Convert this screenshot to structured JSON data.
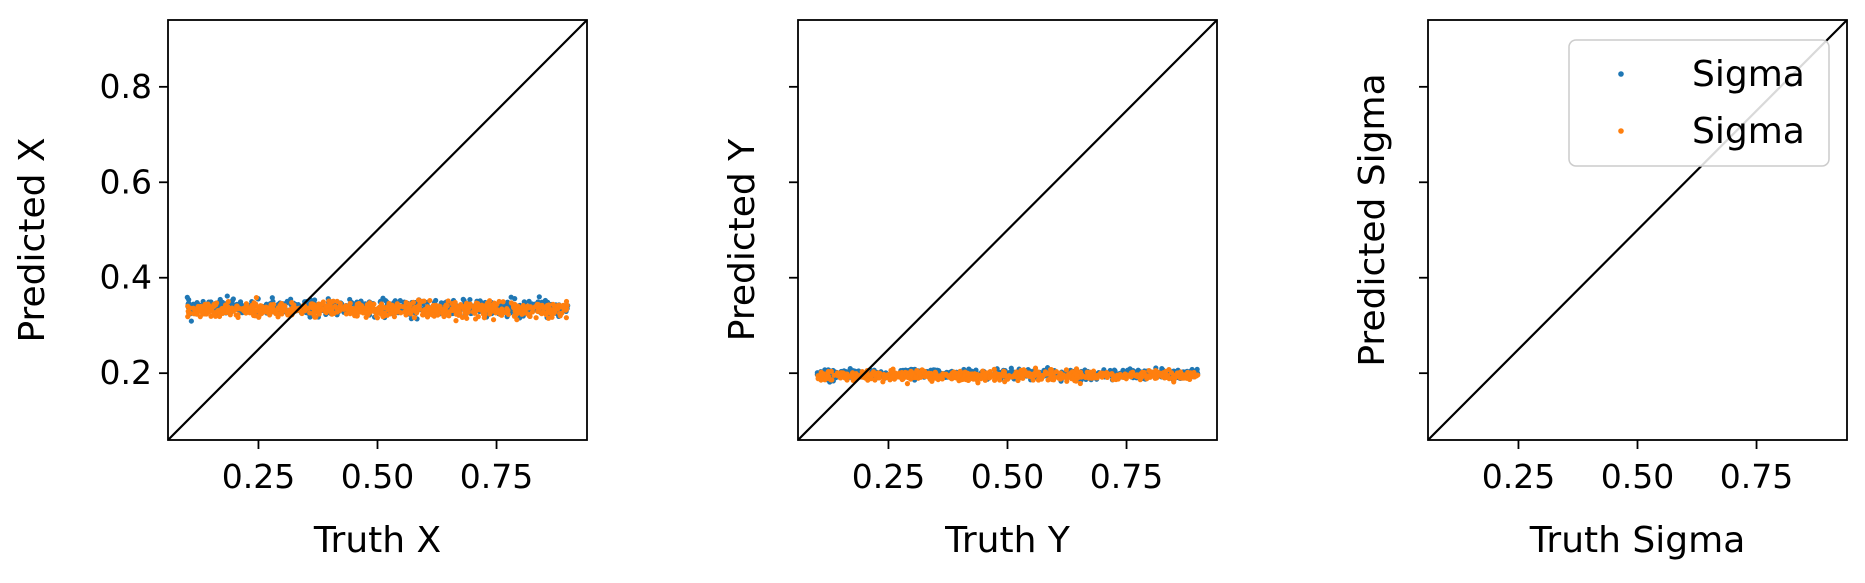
{
  "chart_data": [
    {
      "type": "scatter",
      "xlabel": "Truth X",
      "ylabel": "Predicted X",
      "xlim": [
        0.06,
        0.94
      ],
      "ylim": [
        0.06,
        0.94
      ],
      "xticks": [
        "0.25",
        "0.50",
        "0.75"
      ],
      "yticks": [
        "0.2",
        "0.4",
        "0.6",
        "0.8"
      ],
      "identity_line": true,
      "series": [
        {
          "color": "#1f77b4",
          "x_range": [
            0.1,
            0.9
          ],
          "y_center": 0.337,
          "y_spread": 0.008
        },
        {
          "color": "#ff7f0e",
          "x_range": [
            0.1,
            0.9
          ],
          "y_center": 0.333,
          "y_spread": 0.008
        }
      ]
    },
    {
      "type": "scatter",
      "xlabel": "Truth Y",
      "ylabel": "Predicted Y",
      "xlim": [
        0.06,
        0.94
      ],
      "ylim": [
        0.06,
        0.94
      ],
      "xticks": [
        "0.25",
        "0.50",
        "0.75"
      ],
      "yticks": [
        "",
        "",
        "",
        ""
      ],
      "identity_line": true,
      "series": [
        {
          "color": "#1f77b4",
          "x_range": [
            0.1,
            0.9
          ],
          "y_center": 0.198,
          "y_spread": 0.005
        },
        {
          "color": "#ff7f0e",
          "x_range": [
            0.1,
            0.9
          ],
          "y_center": 0.195,
          "y_spread": 0.005
        }
      ]
    },
    {
      "type": "scatter",
      "xlabel": "Truth Sigma",
      "ylabel": "Predicted Sigma",
      "xlim": [
        0.06,
        0.94
      ],
      "ylim": [
        0.06,
        0.94
      ],
      "xticks": [
        "0.25",
        "0.50",
        "0.75"
      ],
      "yticks": [
        "",
        "",
        "",
        ""
      ],
      "identity_line": true,
      "legend": {
        "position": "top-right",
        "entries": [
          {
            "label": "Sigma",
            "color": "#1f77b4"
          },
          {
            "label": "Sigma",
            "color": "#ff7f0e"
          }
        ]
      },
      "series": []
    }
  ]
}
